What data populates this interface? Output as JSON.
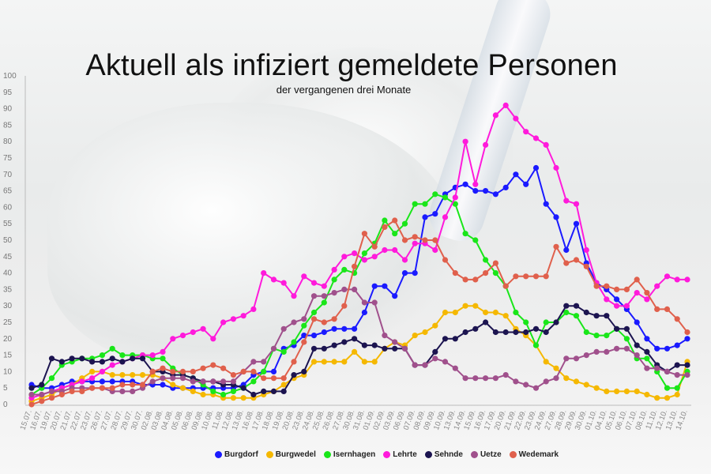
{
  "header": {
    "title": "Aktuell als infiziert gemeldete Personen",
    "subtitle": "der vergangenen drei Monate"
  },
  "chart_data": {
    "type": "line",
    "title": "Aktuell als infiziert gemeldete Personen",
    "subtitle": "der vergangenen drei Monate",
    "xlabel": "",
    "ylabel": "",
    "ylim": [
      0,
      100
    ],
    "yticks": [
      0,
      5,
      10,
      15,
      20,
      25,
      30,
      35,
      40,
      45,
      50,
      55,
      60,
      65,
      70,
      75,
      80,
      85,
      90,
      95,
      100
    ],
    "grid": false,
    "legend_position": "bottom",
    "x": [
      "15.07.",
      "16.07.",
      "19.07.",
      "20.07.",
      "21.07.",
      "22.07.",
      "23.07.",
      "26.07.",
      "27.07.",
      "28.07.",
      "29.07.",
      "30.07.",
      "02.08.",
      "03.08.",
      "04.08.",
      "05.08.",
      "06.08.",
      "09.08.",
      "10.08.",
      "11.08.",
      "12.08.",
      "13.08.",
      "16.08.",
      "17.08.",
      "18.08.",
      "19.08.",
      "20.08.",
      "23.08.",
      "24.08.",
      "25.08.",
      "26.08.",
      "27.08.",
      "30.08.",
      "31.08.",
      "01.09.",
      "02.09.",
      "03.09.",
      "06.09.",
      "07.09.",
      "08.09.",
      "09.09.",
      "10.09.",
      "13.09.",
      "14.09.",
      "15.09.",
      "16.09.",
      "17.09.",
      "20.09.",
      "21.09.",
      "22.09.",
      "23.09.",
      "24.09.",
      "27.09.",
      "28.09.",
      "29.09.",
      "30.09.",
      "01.10.",
      "04.10.",
      "05.10.",
      "06.10.",
      "07.10.",
      "08.10.",
      "11.10.",
      "12.10.",
      "13.10.",
      "14.10."
    ],
    "xtick_labels": [
      "15.07.",
      "16.07.",
      "19.07.",
      "20.07.",
      "21.07.",
      "22.07.",
      "23.07.",
      "26.07.",
      "27.07.",
      "28.07.",
      "29.07.",
      "30.07.",
      "02.08.",
      "03.08.",
      "04.08.",
      "05.08.",
      "06.08.",
      "09.08.",
      "10.08.",
      "11.08.",
      "12.08.",
      "13.08.",
      "16.08.",
      "17.08.",
      "18.08.",
      "19.08.",
      "20.08.",
      "23.08.",
      "24.08.",
      "25.08.",
      "26.08.",
      "27.08.",
      "30.08.",
      "31.08.",
      "01.09.",
      "02.09.",
      "03.09.",
      "06.09.",
      "07.09.",
      "08.09.",
      "09.09.",
      "10.09.",
      "13.09.",
      "14.09.",
      "15.09.",
      "16.09.",
      "17.09.",
      "20.09.",
      "21.09.",
      "22.09.",
      "23.09.",
      "24.09.",
      "27.09.",
      "28.09.",
      "29.09.",
      "30.09.",
      "01.10.",
      "04.10.",
      "05.10.",
      "06.10.",
      "07.10.",
      "08.10.",
      "11.10.",
      "12.10.",
      "13.10.",
      "14.10."
    ],
    "series": [
      {
        "name": "Burgdorf",
        "color": "#1a1aff",
        "values": [
          6,
          5,
          5,
          6,
          7,
          7,
          7,
          7,
          7,
          7,
          7,
          6,
          6,
          6,
          5,
          5,
          5,
          5,
          5,
          5,
          5,
          6,
          9,
          10,
          10,
          17,
          18,
          21,
          21,
          22,
          23,
          23,
          23,
          28,
          36,
          36,
          33,
          40,
          40,
          57,
          58,
          64,
          66,
          67,
          65,
          65,
          64,
          66,
          70,
          67,
          72,
          61,
          57,
          47,
          55,
          43,
          37,
          35,
          32,
          29,
          25,
          20,
          17,
          17,
          18,
          20
        ]
      },
      {
        "name": "Burgwedel",
        "color": "#f5b800",
        "values": [
          1,
          2,
          3,
          5,
          6,
          8,
          10,
          10,
          9,
          9,
          9,
          9,
          9,
          8,
          6,
          5,
          4,
          3,
          3,
          2,
          2,
          2,
          2,
          3,
          4,
          6,
          8,
          9,
          13,
          13,
          13,
          13,
          16,
          13,
          13,
          17,
          19,
          18,
          21,
          22,
          24,
          28,
          28,
          30,
          30,
          28,
          28,
          27,
          23,
          21,
          18,
          13,
          11,
          8,
          7,
          6,
          5,
          4,
          4,
          4,
          4,
          3,
          2,
          2,
          3,
          13
        ]
      },
      {
        "name": "Isernhagen",
        "color": "#19e619",
        "values": [
          3,
          5,
          8,
          12,
          13,
          14,
          14,
          15,
          17,
          15,
          15,
          15,
          14,
          14,
          11,
          9,
          8,
          6,
          4,
          3,
          4,
          5,
          7,
          10,
          17,
          16,
          19,
          24,
          28,
          31,
          38,
          41,
          40,
          46,
          49,
          56,
          52,
          55,
          61,
          61,
          64,
          63,
          61,
          52,
          50,
          44,
          40,
          36,
          28,
          25,
          18,
          25,
          25,
          28,
          27,
          22,
          21,
          21,
          23,
          20,
          14,
          14,
          10,
          5,
          5,
          10
        ]
      },
      {
        "name": "Lehrte",
        "color": "#ff1adb",
        "values": [
          2,
          3,
          4,
          5,
          6,
          7,
          8,
          10,
          12,
          13,
          14,
          15,
          15,
          16,
          20,
          21,
          22,
          23,
          20,
          25,
          26,
          27,
          29,
          40,
          38,
          37,
          33,
          39,
          37,
          36,
          41,
          45,
          46,
          44,
          45,
          47,
          47,
          44,
          49,
          49,
          47,
          57,
          63,
          80,
          67,
          79,
          88,
          91,
          87,
          83,
          81,
          79,
          72,
          62,
          61,
          47,
          37,
          32,
          30,
          30,
          34,
          32,
          36,
          39,
          38,
          38
        ]
      },
      {
        "name": "Sehnde",
        "color": "#1c1450",
        "values": [
          5,
          6,
          14,
          13,
          14,
          14,
          13,
          13,
          14,
          13,
          14,
          14,
          10,
          10,
          9,
          9,
          8,
          7,
          7,
          6,
          6,
          5,
          3,
          4,
          4,
          4,
          9,
          10,
          17,
          17,
          18,
          19,
          20,
          18,
          18,
          17,
          17,
          17,
          12,
          12,
          16,
          20,
          20,
          22,
          23,
          25,
          22,
          22,
          22,
          22,
          23,
          22,
          25,
          30,
          30,
          28,
          27,
          27,
          23,
          23,
          18,
          16,
          12,
          10,
          12,
          12
        ]
      },
      {
        "name": "Uetze",
        "color": "#a0508c",
        "values": [
          3,
          3,
          4,
          4,
          5,
          5,
          5,
          5,
          4,
          4,
          4,
          5,
          7,
          8,
          8,
          8,
          7,
          7,
          7,
          7,
          7,
          10,
          13,
          13,
          17,
          23,
          25,
          26,
          33,
          33,
          34,
          35,
          35,
          31,
          31,
          21,
          19,
          17,
          12,
          12,
          14,
          13,
          11,
          8,
          8,
          8,
          8,
          9,
          7,
          6,
          5,
          7,
          8,
          14,
          14,
          15,
          16,
          16,
          17,
          17,
          15,
          11,
          11,
          10,
          9,
          9
        ]
      },
      {
        "name": "Wedemark",
        "color": "#e0604c",
        "values": [
          0,
          1,
          2,
          3,
          4,
          4,
          5,
          5,
          5,
          6,
          6,
          6,
          10,
          11,
          10,
          10,
          10,
          11,
          12,
          11,
          9,
          10,
          10,
          8,
          8,
          8,
          13,
          19,
          26,
          25,
          26,
          30,
          42,
          52,
          48,
          54,
          56,
          50,
          51,
          50,
          50,
          44,
          40,
          38,
          38,
          40,
          43,
          36,
          39,
          39,
          39,
          39,
          48,
          43,
          44,
          42,
          36,
          36,
          35,
          35,
          38,
          34,
          29,
          29,
          26,
          22
        ]
      }
    ]
  }
}
